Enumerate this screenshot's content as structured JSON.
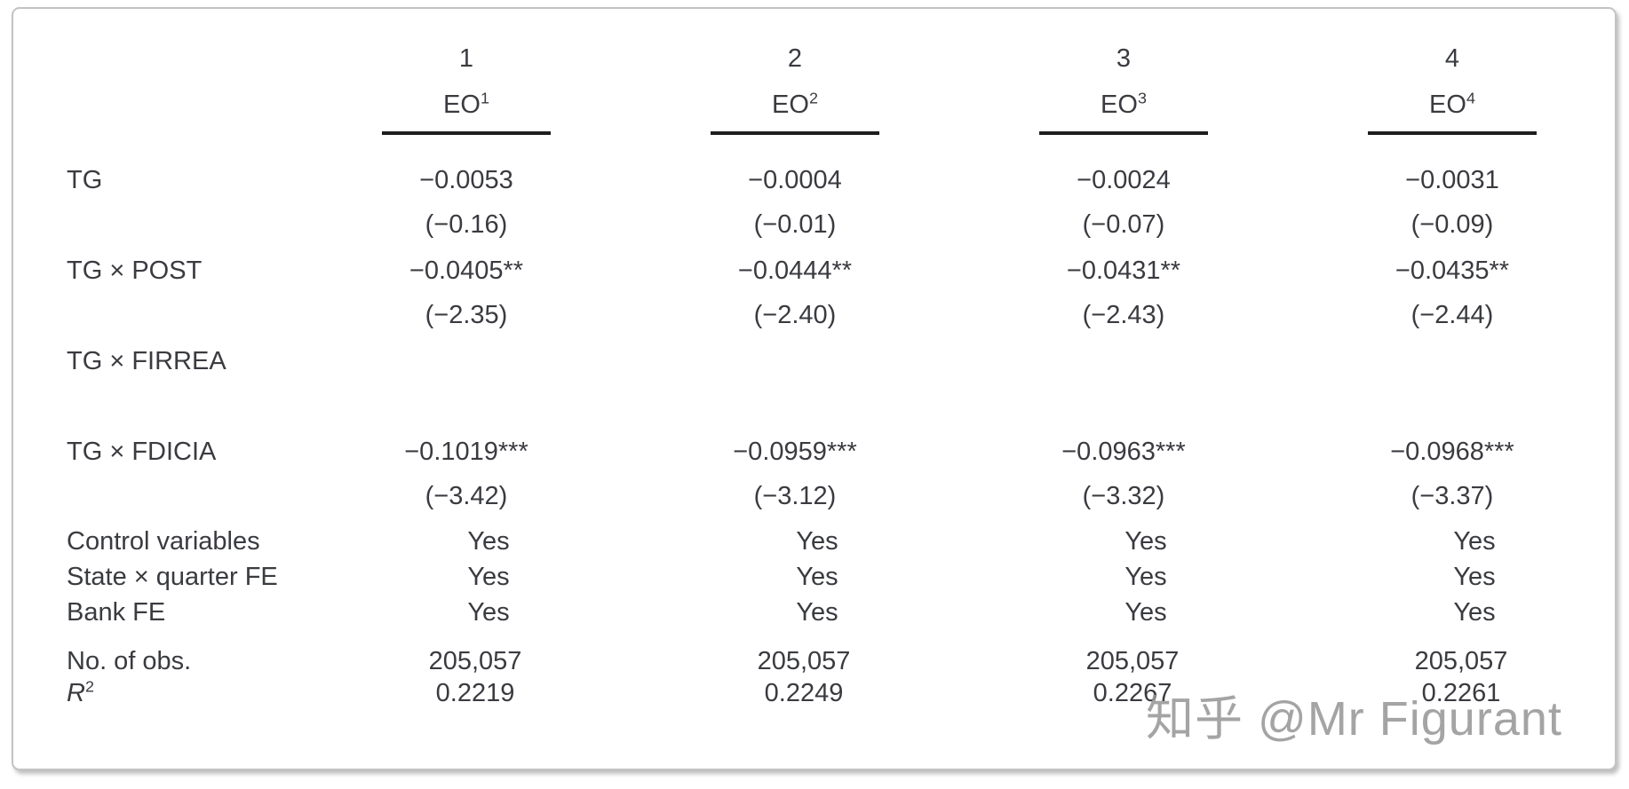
{
  "ink_color": "#3a3b40",
  "rule_color": "#1e1e1e",
  "card_border_color": "#c3c3c3",
  "watermark": {
    "text": "知乎 @Mr Figurant"
  },
  "table": {
    "columns": [
      {
        "number": "1",
        "dep_base": "EO",
        "dep_sup": "1"
      },
      {
        "number": "2",
        "dep_base": "EO",
        "dep_sup": "2"
      },
      {
        "number": "3",
        "dep_base": "EO",
        "dep_sup": "3"
      },
      {
        "number": "4",
        "dep_base": "EO",
        "dep_sup": "4"
      }
    ],
    "rows": [
      {
        "kind": "coef",
        "label": "TG",
        "values": [
          "−0.0053",
          "−0.0004",
          "−0.0024",
          "−0.0031"
        ],
        "tstats": [
          "(−0.16)",
          "(−0.01)",
          "(−0.07)",
          "(−0.09)"
        ]
      },
      {
        "kind": "coef",
        "label": "TG × POST",
        "values": [
          "−0.0405**",
          "−0.0444**",
          "−0.0431**",
          "−0.0435**"
        ],
        "tstats": [
          "(−2.35)",
          "(−2.40)",
          "(−2.43)",
          "(−2.44)"
        ]
      },
      {
        "kind": "coef",
        "label": "TG × FIRREA",
        "values": [
          "",
          "",
          "",
          ""
        ],
        "tstats": [
          "",
          "",
          "",
          ""
        ]
      },
      {
        "kind": "coef",
        "label": "TG × FDICIA",
        "values": [
          "−0.1019***",
          "−0.0959***",
          "−0.0963***",
          "−0.0968***"
        ],
        "tstats": [
          "(−3.42)",
          "(−3.12)",
          "(−3.32)",
          "(−3.37)"
        ]
      },
      {
        "kind": "info",
        "label": "Control variables",
        "values": [
          "Yes",
          "Yes",
          "Yes",
          "Yes"
        ]
      },
      {
        "kind": "info",
        "label": "State × quarter FE",
        "values": [
          "Yes",
          "Yes",
          "Yes",
          "Yes"
        ]
      },
      {
        "kind": "info",
        "label": "Bank FE",
        "values": [
          "Yes",
          "Yes",
          "Yes",
          "Yes"
        ]
      },
      {
        "kind": "stat",
        "label": "No. of obs.",
        "values": [
          "205,057",
          "205,057",
          "205,057",
          "205,057"
        ]
      },
      {
        "kind": "stat",
        "label_base": "R",
        "label_sup": "2",
        "label_italic": true,
        "values": [
          "0.2219",
          "0.2249",
          "0.2267",
          "0.2261"
        ]
      }
    ]
  }
}
